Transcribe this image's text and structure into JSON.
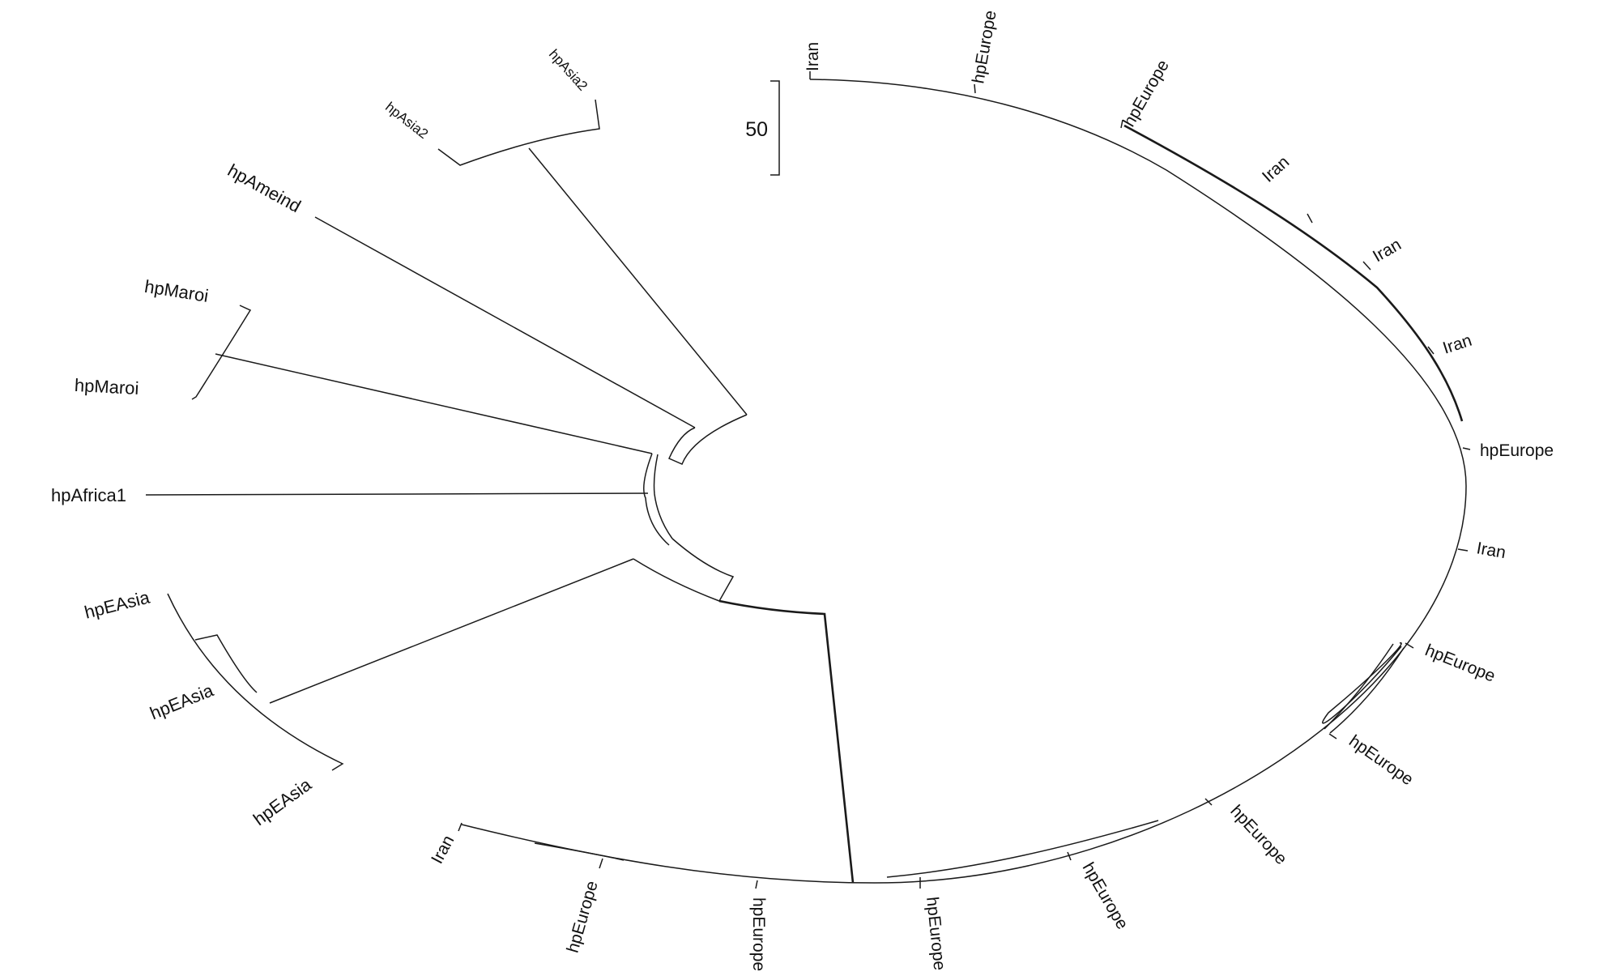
{
  "scale_bar": {
    "label": "50"
  },
  "leaves": [
    {
      "id": "leaf-iran-1",
      "label": "Iran"
    },
    {
      "id": "leaf-hpeurope-1",
      "label": "hpEurope"
    },
    {
      "id": "leaf-hpeurope-2",
      "label": "hpEurope"
    },
    {
      "id": "leaf-iran-2",
      "label": "Iran"
    },
    {
      "id": "leaf-iran-3",
      "label": "Iran"
    },
    {
      "id": "leaf-iran-4",
      "label": "Iran"
    },
    {
      "id": "leaf-hpeurope-3",
      "label": "hpEurope"
    },
    {
      "id": "leaf-iran-5",
      "label": "Iran"
    },
    {
      "id": "leaf-hpeurope-4",
      "label": "hpEurope"
    },
    {
      "id": "leaf-hpeurope-5",
      "label": "hpEurope"
    },
    {
      "id": "leaf-hpeurope-6",
      "label": "hpEurope"
    },
    {
      "id": "leaf-hpeurope-7",
      "label": "hpEurope"
    },
    {
      "id": "leaf-hpeurope-8",
      "label": "hpEurope"
    },
    {
      "id": "leaf-hpeurope-9",
      "label": "hpEurope"
    },
    {
      "id": "leaf-hpeurope-10",
      "label": "hpEurope"
    },
    {
      "id": "leaf-iran-6",
      "label": "Iran"
    },
    {
      "id": "leaf-hpeasia-1",
      "label": "hpEAsia"
    },
    {
      "id": "leaf-hpeasia-2",
      "label": "hpEAsia"
    },
    {
      "id": "leaf-hpeasia-3",
      "label": "hpEAsia"
    },
    {
      "id": "leaf-hpafrica1",
      "label": "hpAfrica1"
    },
    {
      "id": "leaf-hpmaroi-1",
      "label": "hpMaroi"
    },
    {
      "id": "leaf-hpmaroi-2",
      "label": "hpMaroi"
    },
    {
      "id": "leaf-hpameind",
      "label": "hpAmeind"
    },
    {
      "id": "leaf-hpasia2-1",
      "label": "hpAsia2"
    },
    {
      "id": "leaf-hpasia2-2",
      "label": "hpAsia2"
    }
  ]
}
